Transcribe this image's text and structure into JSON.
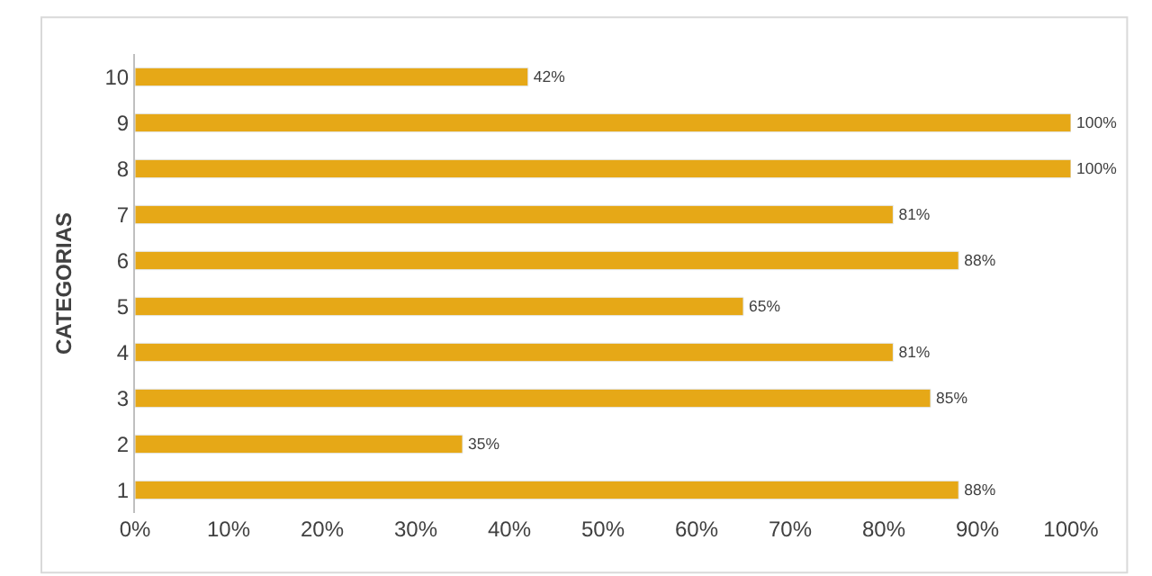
{
  "chart_data": {
    "type": "bar",
    "orientation": "horizontal",
    "ylabel": "CATEGORIAS",
    "categories": [
      "10",
      "9",
      "8",
      "7",
      "6",
      "5",
      "4",
      "3",
      "2",
      "1"
    ],
    "values": [
      42,
      100,
      100,
      81,
      88,
      65,
      81,
      85,
      35,
      88
    ],
    "value_labels": [
      "42%",
      "100%",
      "100%",
      "81%",
      "88%",
      "65%",
      "81%",
      "85%",
      "35%",
      "88%"
    ],
    "color": "#e6a817",
    "xlim": [
      0,
      100
    ],
    "xticks": [
      {
        "value": 0,
        "label": "0%"
      },
      {
        "value": 10,
        "label": "10%"
      },
      {
        "value": 20,
        "label": "20%"
      },
      {
        "value": 30,
        "label": "30%"
      },
      {
        "value": 40,
        "label": "40%"
      },
      {
        "value": 50,
        "label": "50%"
      },
      {
        "value": 60,
        "label": "60%"
      },
      {
        "value": 70,
        "label": "70%"
      },
      {
        "value": 80,
        "label": "80%"
      },
      {
        "value": 90,
        "label": "90%"
      },
      {
        "value": 100,
        "label": "100%"
      }
    ],
    "grid": false
  }
}
